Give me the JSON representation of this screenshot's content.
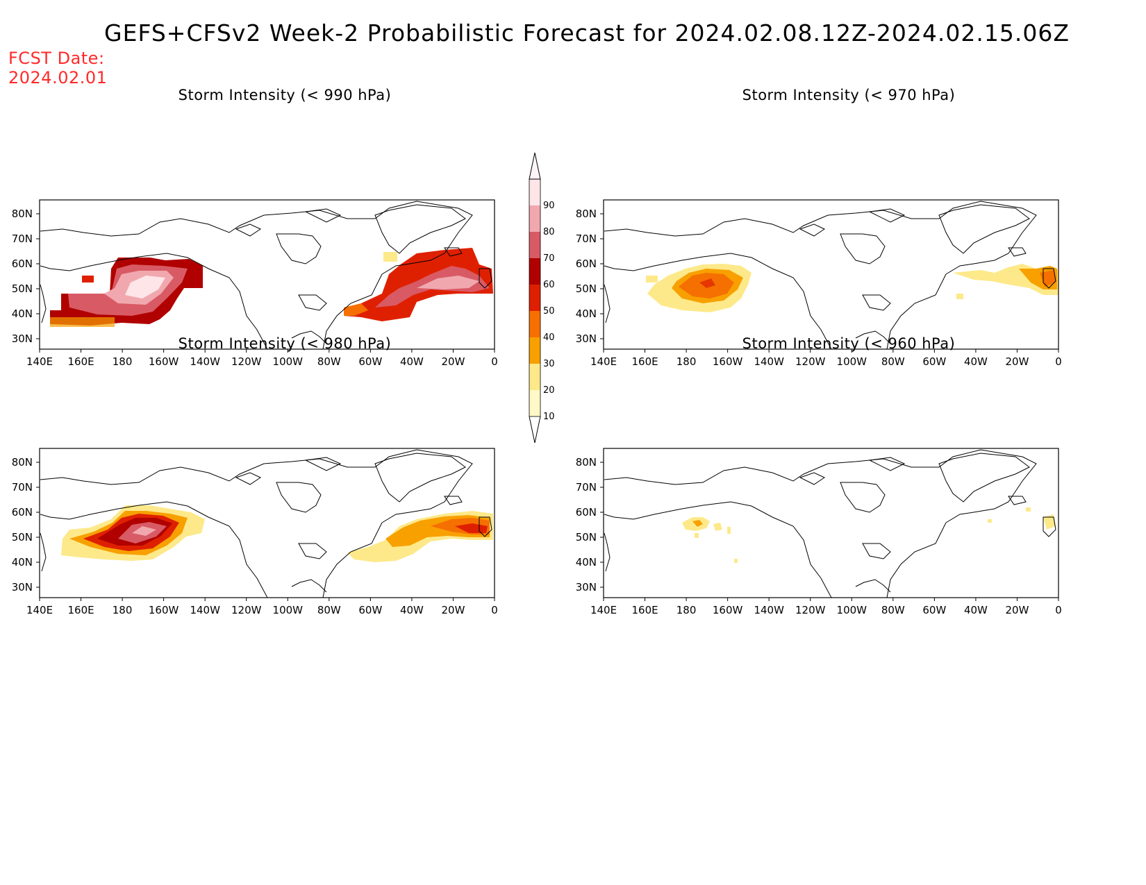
{
  "title": "GEFS+CFSv2 Week-2 Probabilistic Forecast for 2024.02.08.12Z-2024.02.15.06Z",
  "fcst_date_label": "FCST Date:",
  "fcst_date_value": "2024.02.01",
  "colors": {
    "fcst_text": "#ff2a2a",
    "levels": [
      "#fff8c8",
      "#fde98a",
      "#f8a000",
      "#f57000",
      "#df2000",
      "#b00000",
      "#d85a64",
      "#f0a8ae",
      "#fde5e8"
    ]
  },
  "colorbar": {
    "ticks": [
      "10",
      "20",
      "30",
      "40",
      "50",
      "60",
      "70",
      "80",
      "90"
    ]
  },
  "axes": {
    "lat_labels": [
      "80N",
      "70N",
      "60N",
      "50N",
      "40N",
      "30N"
    ],
    "lon_labels": [
      "140E",
      "160E",
      "180",
      "160W",
      "140W",
      "120W",
      "100W",
      "80W",
      "60W",
      "40W",
      "20W",
      "0"
    ]
  },
  "panels": [
    {
      "id": "p990",
      "title": "Storm Intensity (< 990 hPa)"
    },
    {
      "id": "p970",
      "title": "Storm Intensity (< 970 hPa)"
    },
    {
      "id": "p980",
      "title": "Storm Intensity (< 980 hPa)"
    },
    {
      "id": "p960",
      "title": "Storm Intensity (< 960 hPa)"
    }
  ]
}
